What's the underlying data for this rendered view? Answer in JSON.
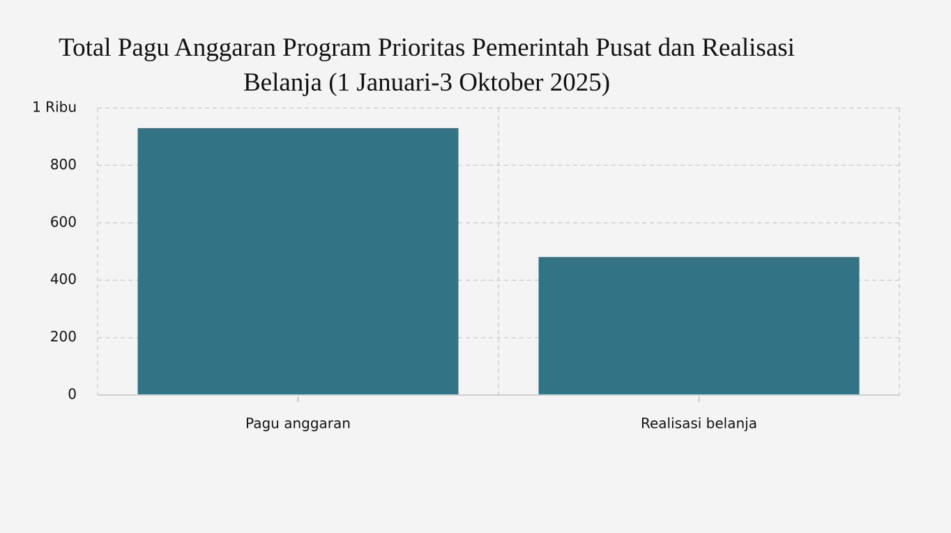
{
  "chart_data": {
    "type": "bar",
    "title": "Total Pagu Anggaran Program Prioritas Pemerintah Pusat dan Realisasi Belanja (1 Januari-3 Oktober 2025)",
    "categories": [
      "Pagu anggaran",
      "Realisasi belanja"
    ],
    "values": [
      930,
      481
    ],
    "color": "#327386",
    "ylim": [
      0,
      1000
    ],
    "yticks": [
      0,
      200,
      400,
      600,
      800,
      {
        "value": 1000,
        "label": "1 Ribu"
      }
    ],
    "grid": true
  }
}
